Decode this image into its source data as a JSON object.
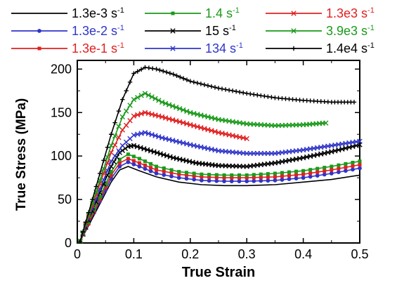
{
  "chart_data": {
    "type": "line",
    "xlabel": "True Strain",
    "ylabel": "True Stress (MPa)",
    "xlim": [
      0,
      0.5
    ],
    "ylim": [
      0,
      210
    ],
    "xticks": [
      "0",
      "0.1",
      "0.2",
      "0.3",
      "0.4",
      "0.5"
    ],
    "yticks": [
      "0",
      "50",
      "100",
      "150",
      "200"
    ],
    "legend_position": "top",
    "series": [
      {
        "name": "1.3e-3 s",
        "unit_sup": "-1",
        "color": "#000000",
        "marker": "none",
        "x": [
          0.005,
          0.02,
          0.04,
          0.06,
          0.075,
          0.09,
          0.11,
          0.14,
          0.18,
          0.22,
          0.26,
          0.3,
          0.35,
          0.4,
          0.45,
          0.5
        ],
        "y": [
          2,
          20,
          45,
          70,
          84,
          88,
          83,
          76,
          70,
          67,
          66,
          66,
          67,
          70,
          73,
          78
        ]
      },
      {
        "name": "1.3e-2 s",
        "unit_sup": "-1",
        "color": "#2f35c8",
        "marker": "circle",
        "x": [
          0.005,
          0.02,
          0.04,
          0.06,
          0.075,
          0.09,
          0.11,
          0.14,
          0.18,
          0.22,
          0.26,
          0.3,
          0.35,
          0.4,
          0.45,
          0.5
        ],
        "y": [
          2,
          22,
          48,
          74,
          88,
          93,
          88,
          80,
          75,
          72,
          71,
          71,
          72,
          75,
          80,
          86
        ]
      },
      {
        "name": "1.3e-1 s",
        "unit_sup": "-1",
        "color": "#e02020",
        "marker": "square",
        "x": [
          0.005,
          0.02,
          0.04,
          0.06,
          0.075,
          0.09,
          0.11,
          0.14,
          0.18,
          0.22,
          0.26,
          0.3,
          0.35,
          0.4,
          0.45,
          0.5
        ],
        "y": [
          2,
          22,
          50,
          78,
          92,
          97,
          92,
          84,
          79,
          76,
          75,
          75,
          76,
          79,
          84,
          90
        ]
      },
      {
        "name": "1.4 s",
        "unit_sup": "-1",
        "color": "#1a9a1a",
        "marker": "square",
        "x": [
          0.005,
          0.02,
          0.04,
          0.06,
          0.075,
          0.09,
          0.11,
          0.14,
          0.18,
          0.22,
          0.26,
          0.3,
          0.35,
          0.4,
          0.45,
          0.5
        ],
        "y": [
          2,
          24,
          53,
          82,
          96,
          102,
          97,
          88,
          82,
          79,
          78,
          78,
          80,
          83,
          88,
          94
        ]
      },
      {
        "name": "15 s",
        "unit_sup": "-1",
        "color": "#000000",
        "marker": "x",
        "x": [
          0.005,
          0.02,
          0.04,
          0.06,
          0.075,
          0.09,
          0.1,
          0.13,
          0.17,
          0.21,
          0.25,
          0.3,
          0.35,
          0.4,
          0.45,
          0.5
        ],
        "y": [
          2,
          26,
          58,
          88,
          104,
          111,
          112,
          106,
          98,
          92,
          89,
          88,
          92,
          98,
          105,
          113
        ]
      },
      {
        "name": "134 s",
        "unit_sup": "-1",
        "color": "#2f35c8",
        "marker": "x",
        "x": [
          0.005,
          0.02,
          0.04,
          0.06,
          0.08,
          0.1,
          0.12,
          0.15,
          0.2,
          0.25,
          0.3,
          0.35,
          0.4,
          0.45,
          0.5
        ],
        "y": [
          2,
          28,
          62,
          94,
          112,
          124,
          127,
          121,
          113,
          106,
          103,
          103,
          107,
          112,
          117
        ]
      },
      {
        "name": "1.3e3 s",
        "unit_sup": "-1",
        "color": "#e02020",
        "marker": "x",
        "x": [
          0.005,
          0.02,
          0.04,
          0.06,
          0.08,
          0.1,
          0.12,
          0.15,
          0.2,
          0.25,
          0.3
        ],
        "y": [
          2,
          30,
          68,
          104,
          130,
          146,
          150,
          145,
          136,
          127,
          120
        ]
      },
      {
        "name": "3.9e3 s",
        "unit_sup": "-1",
        "color": "#1a9a1a",
        "marker": "x",
        "x": [
          0.005,
          0.02,
          0.04,
          0.06,
          0.08,
          0.1,
          0.12,
          0.15,
          0.2,
          0.25,
          0.3,
          0.35,
          0.4,
          0.44
        ],
        "y": [
          2,
          32,
          72,
          112,
          145,
          165,
          172,
          162,
          150,
          142,
          137,
          135,
          136,
          138
        ]
      },
      {
        "name": "1.4e4 s",
        "unit_sup": "-1",
        "color": "#000000",
        "marker": "plus",
        "x": [
          0.005,
          0.02,
          0.04,
          0.06,
          0.08,
          0.1,
          0.12,
          0.14,
          0.17,
          0.2,
          0.25,
          0.3,
          0.35,
          0.4,
          0.45,
          0.49
        ],
        "y": [
          2,
          35,
          80,
          125,
          165,
          195,
          202,
          200,
          194,
          186,
          178,
          172,
          167,
          164,
          162,
          162
        ]
      }
    ]
  }
}
